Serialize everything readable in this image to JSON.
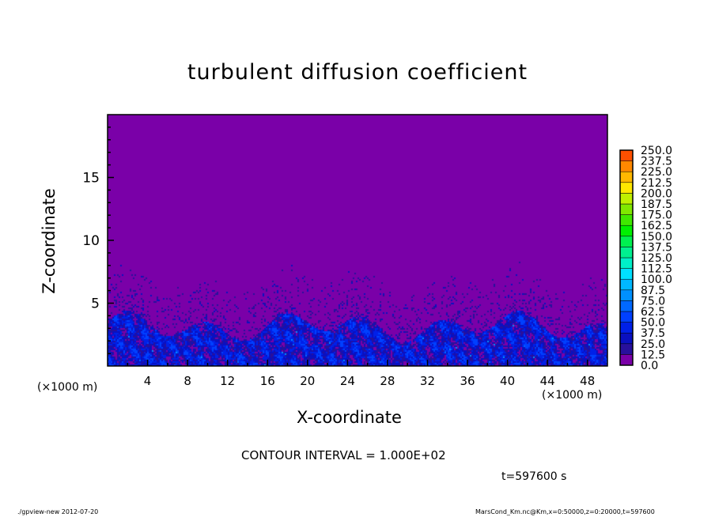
{
  "chart_data": {
    "type": "heatmap",
    "title": "turbulent diffusion coefficient",
    "xlabel": "X-coordinate",
    "ylabel": "Z-coordinate",
    "x_unit_label": "(×1000 m)",
    "xlim": [
      0,
      50
    ],
    "ylim": [
      0,
      20
    ],
    "x_ticks": [
      4,
      8,
      12,
      16,
      20,
      24,
      28,
      32,
      36,
      40,
      44,
      48
    ],
    "y_ticks": [
      5,
      10,
      15
    ],
    "colorbar": {
      "levels": [
        0.0,
        12.5,
        25.0,
        37.5,
        50.0,
        62.5,
        75.0,
        87.5,
        100.0,
        112.5,
        125.0,
        137.5,
        150.0,
        162.5,
        175.0,
        187.5,
        200.0,
        212.5,
        225.0,
        237.5,
        250.0
      ],
      "labels": [
        "0.0",
        "12.5",
        "25.0",
        "37.5",
        "50.0",
        "62.5",
        "75.0",
        "87.5",
        "100.0",
        "112.5",
        "125.0",
        "137.5",
        "150.0",
        "162.5",
        "175.0",
        "187.5",
        "200.0",
        "212.5",
        "225.0",
        "237.5",
        "250.0"
      ],
      "colors": [
        "#7a00a8",
        "#28109c",
        "#0a10c0",
        "#0020e8",
        "#0040ff",
        "#0068ff",
        "#0090ff",
        "#00b8ff",
        "#00e0ff",
        "#00f0c8",
        "#00f090",
        "#00f050",
        "#00f000",
        "#40e800",
        "#80e800",
        "#c0f000",
        "#ffe800",
        "#ffb800",
        "#ff8800",
        "#ff5000",
        "#ff0000",
        "#ff6060"
      ]
    },
    "description_of_field": "values mostly 0–37.5 below z≈4 (×1000 m), background 0 above"
  },
  "contour_interval": "CONTOUR INTERVAL = 1.000E+02",
  "time_label": "t=597600 s",
  "footer_left": "./gpview-new   2012-07-20",
  "footer_right": "MarsCond_Km.nc@Km,x=0:50000,z=0:20000,t=597600"
}
